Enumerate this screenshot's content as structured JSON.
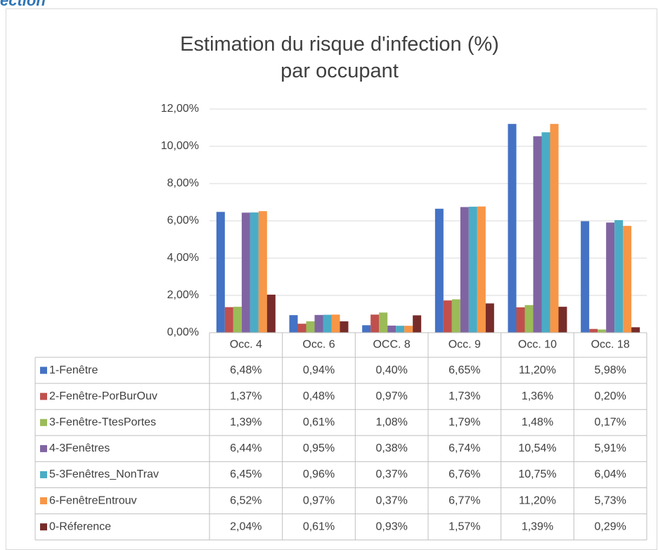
{
  "heading": "ection",
  "chart_data": {
    "type": "bar",
    "title": "Estimation du risque d'infection (%) par occupant",
    "categories": [
      "Occ. 4",
      "Occ. 6",
      "OCC. 8",
      "Occ. 9",
      "Occ. 10",
      "Occ. 18"
    ],
    "ylim": [
      0,
      12
    ],
    "yticks": [
      {
        "value": 0,
        "label": "0,00%"
      },
      {
        "value": 2,
        "label": "2,00%"
      },
      {
        "value": 4,
        "label": "4,00%"
      },
      {
        "value": 6,
        "label": "6,00%"
      },
      {
        "value": 8,
        "label": "8,00%"
      },
      {
        "value": 10,
        "label": "10,00%"
      },
      {
        "value": 12,
        "label": "12,00%"
      }
    ],
    "grid": true,
    "series": [
      {
        "name": "1-Fenêtre",
        "color": "#4472c4",
        "values": [
          6.48,
          0.94,
          0.4,
          6.65,
          11.2,
          5.98
        ],
        "value_labels": [
          "6,48%",
          "0,94%",
          "0,40%",
          "6,65%",
          "11,20%",
          "5,98%"
        ]
      },
      {
        "name": "2-Fenêtre-PorBurOuv",
        "color": "#c0504d",
        "values": [
          1.37,
          0.48,
          0.97,
          1.73,
          1.36,
          0.2
        ],
        "value_labels": [
          "1,37%",
          "0,48%",
          "0,97%",
          "1,73%",
          "1,36%",
          "0,20%"
        ]
      },
      {
        "name": "3-Fenêtre-TtesPortes",
        "color": "#9bbb59",
        "values": [
          1.39,
          0.61,
          1.08,
          1.79,
          1.48,
          0.17
        ],
        "value_labels": [
          "1,39%",
          "0,61%",
          "1,08%",
          "1,79%",
          "1,48%",
          "0,17%"
        ]
      },
      {
        "name": "4-3Fenêtres",
        "color": "#8064a2",
        "values": [
          6.44,
          0.95,
          0.38,
          6.74,
          10.54,
          5.91
        ],
        "value_labels": [
          "6,44%",
          "0,95%",
          "0,38%",
          "6,74%",
          "10,54%",
          "5,91%"
        ]
      },
      {
        "name": "5-3Fenêtres_NonTrav",
        "color": "#4bacc6",
        "values": [
          6.45,
          0.96,
          0.37,
          6.76,
          10.75,
          6.04
        ],
        "value_labels": [
          "6,45%",
          "0,96%",
          "0,37%",
          "6,76%",
          "10,75%",
          "6,04%"
        ]
      },
      {
        "name": "6-FenêtreEntrouv",
        "color": "#f79646",
        "values": [
          6.52,
          0.97,
          0.37,
          6.77,
          11.2,
          5.73
        ],
        "value_labels": [
          "6,52%",
          "0,97%",
          "0,37%",
          "6,77%",
          "11,20%",
          "5,73%"
        ]
      },
      {
        "name": "0-Réference",
        "color": "#772c2a",
        "values": [
          2.04,
          0.61,
          0.93,
          1.57,
          1.39,
          0.29
        ],
        "value_labels": [
          "2,04%",
          "0,61%",
          "0,93%",
          "1,57%",
          "1,39%",
          "0,29%"
        ]
      }
    ]
  }
}
